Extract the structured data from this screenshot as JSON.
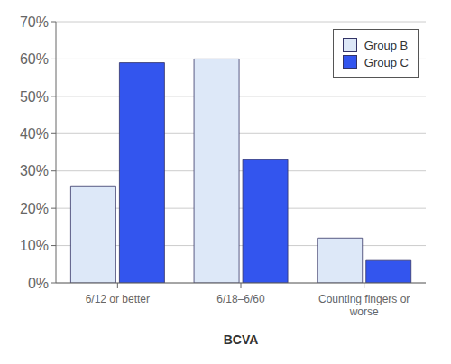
{
  "chart_data": {
    "type": "bar",
    "categories": [
      "6/12 or better",
      "6/18–6/60",
      "Counting fingers or\nworse"
    ],
    "series": [
      {
        "name": "Group B",
        "color": "#dde8f8",
        "values": [
          26,
          60,
          12
        ]
      },
      {
        "name": "Group C",
        "color": "#3355ee",
        "values": [
          59,
          33,
          6
        ]
      }
    ],
    "xlabel": "BCVA",
    "ylim": [
      0,
      70
    ],
    "yticks": [
      {
        "value": 0,
        "label": "0%"
      },
      {
        "value": 10,
        "label": "10%"
      },
      {
        "value": 20,
        "label": "20%"
      },
      {
        "value": 30,
        "label": "30%"
      },
      {
        "value": 40,
        "label": "40%"
      },
      {
        "value": 50,
        "label": "50%"
      },
      {
        "value": 60,
        "label": "60%"
      },
      {
        "value": 70,
        "label": "70%"
      }
    ],
    "grid": true,
    "legend": "upper right"
  }
}
